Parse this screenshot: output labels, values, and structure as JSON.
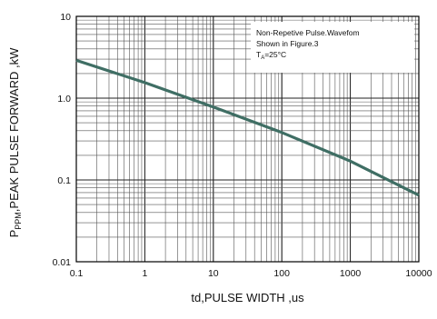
{
  "chart_data": {
    "type": "line",
    "scale": {
      "x": "log",
      "y": "log"
    },
    "xlabel": "td,PULSE WIDTH ,us",
    "ylabel": {
      "prefix": "P",
      "subscript": "PPM",
      "suffix": ",PEAK PULSE  FORWARD ,kW"
    },
    "xlim": [
      0.1,
      10000
    ],
    "ylim": [
      0.01,
      10
    ],
    "x_ticks": [
      {
        "value": 0.1,
        "label": "0.1"
      },
      {
        "value": 1,
        "label": "1"
      },
      {
        "value": 10,
        "label": "10"
      },
      {
        "value": 100,
        "label": "100"
      },
      {
        "value": 1000,
        "label": "1000"
      },
      {
        "value": 10000,
        "label": "10000"
      }
    ],
    "y_ticks": [
      {
        "value": 0.01,
        "label": "0.01"
      },
      {
        "value": 0.1,
        "label": "0.1"
      },
      {
        "value": 1,
        "label": "1.0"
      },
      {
        "value": 10,
        "label": "10"
      }
    ],
    "grid": true,
    "annotation": {
      "line1": "Non-Repetive  Pulse.Wavefom",
      "line2": "Shown in Figure.3",
      "line3_prefix": "T",
      "line3_subscript": "A",
      "line3_suffix": "=25°C"
    },
    "series": [
      {
        "color": "#3f6e64",
        "x": [
          0.1,
          1,
          10,
          100,
          1000,
          10000
        ],
        "y": [
          2.9,
          1.55,
          0.78,
          0.38,
          0.17,
          0.065
        ]
      }
    ]
  }
}
